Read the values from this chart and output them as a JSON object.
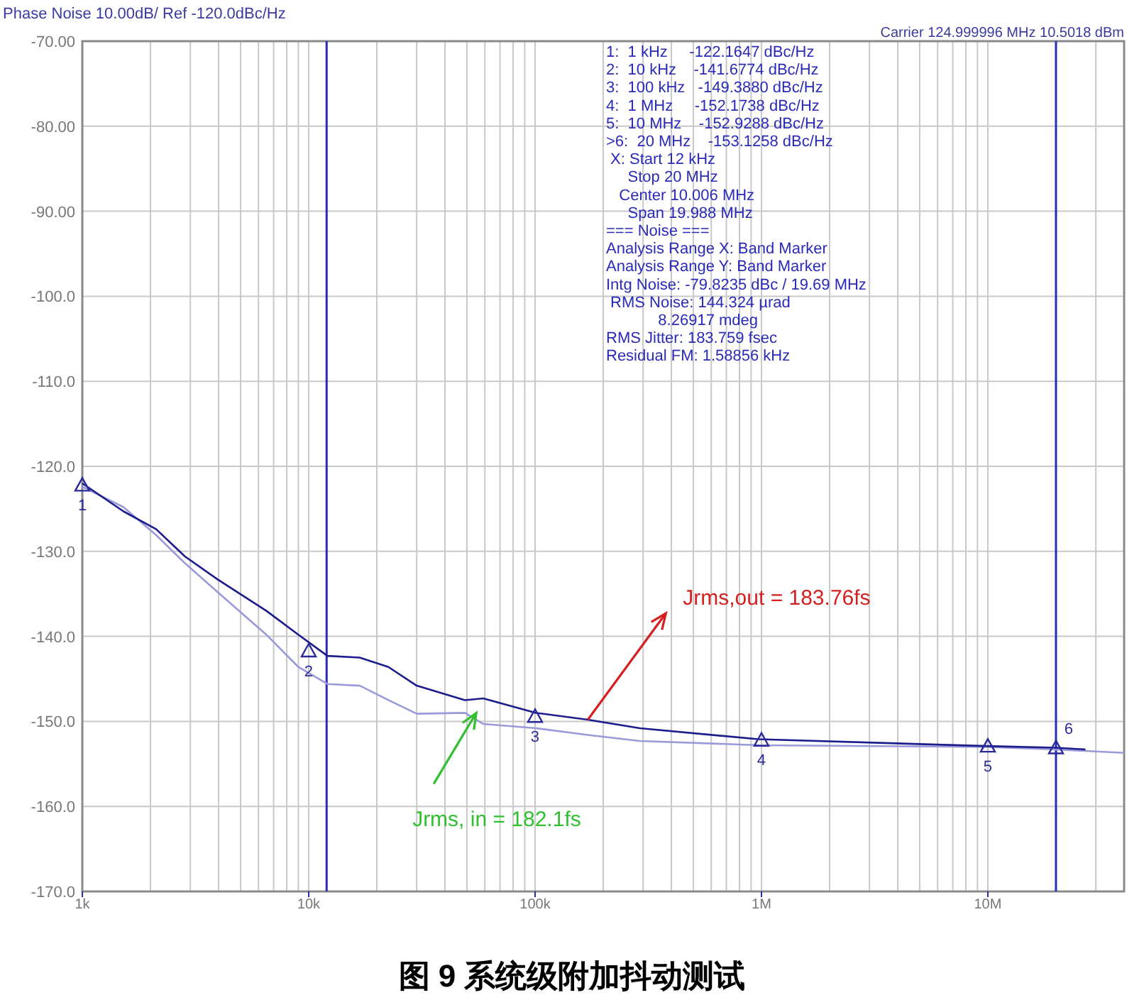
{
  "chart_data": {
    "type": "line",
    "title": "Phase Noise 10.00dB/ Ref -120.0dBc/Hz",
    "subtitle": "Carrier 124.999996 MHz   10.5018 dBm",
    "xlim": [
      1000,
      40000000
    ],
    "ylim": [
      -170,
      -70
    ],
    "log": "x",
    "grid": true,
    "xticks": [
      {
        "value": 1000,
        "label": "1k"
      },
      {
        "value": 10000,
        "label": "10k"
      },
      {
        "value": 100000,
        "label": "100k"
      },
      {
        "value": 1000000,
        "label": "1M"
      },
      {
        "value": 10000000,
        "label": "10M"
      }
    ],
    "yticks": [
      {
        "value": -70,
        "label": "-70.00"
      },
      {
        "value": -80,
        "label": "-80.00"
      },
      {
        "value": -90,
        "label": "-90.00"
      },
      {
        "value": -100,
        "label": "-100.0"
      },
      {
        "value": -110,
        "label": "-110.0"
      },
      {
        "value": -120,
        "label": "-120.0"
      },
      {
        "value": -130,
        "label": "-130.0"
      },
      {
        "value": -140,
        "label": "-140.0"
      },
      {
        "value": -150,
        "label": "-150.0"
      },
      {
        "value": -160,
        "label": "-160.0"
      },
      {
        "value": -170,
        "label": "-170.0"
      }
    ],
    "ref_lines": [
      {
        "axis": "x",
        "value": 12000,
        "color": "#2a2ab8"
      },
      {
        "axis": "x",
        "value": 20000000,
        "color": "#2a2ab8"
      }
    ],
    "series": [
      {
        "color": "#9a9ad8",
        "x": [
          1000,
          1520,
          2120,
          2840,
          3960,
          6500,
          9000,
          12100,
          16800,
          22500,
          30000,
          49000,
          59000,
          101000,
          171000,
          290000,
          970000,
          9800000,
          20000000,
          40000000
        ],
        "values": [
          -122.4,
          -124.8,
          -128.1,
          -131.4,
          -134.8,
          -139.8,
          -143.6,
          -145.6,
          -145.8,
          -147.5,
          -149.1,
          -149,
          -150.3,
          -150.8,
          -151.6,
          -152.3,
          -152.8,
          -153,
          -153.3,
          -153.7
        ]
      },
      {
        "color": "#1c1c8c",
        "x": [
          1000,
          1520,
          2120,
          2840,
          3960,
          6500,
          9000,
          12100,
          16800,
          22500,
          30000,
          49000,
          59000,
          101000,
          171000,
          290000,
          970000,
          9800000,
          20000000,
          27000000
        ],
        "values": [
          -122,
          -125.3,
          -127.4,
          -130.6,
          -133.3,
          -137,
          -139.8,
          -142.3,
          -142.5,
          -143.6,
          -145.8,
          -147.5,
          -147.3,
          -149,
          -149.8,
          -150.8,
          -152.1,
          -152.9,
          -153.1,
          -153.3
        ]
      },
      {
        "type": "scatter",
        "marker": "triangle",
        "color": "#2a2a9a",
        "x": [
          1000,
          10000,
          100000,
          1000000,
          10000000,
          20000000
        ],
        "values": [
          -122.2,
          -141.7,
          -149.4,
          -152.2,
          -152.9,
          -153.1
        ]
      }
    ],
    "annotations": [
      "1:  1 kHz     -122.1647 dBc/Hz",
      "2:  10 kHz    -141.6774 dBc/Hz",
      "3:  100 kHz   -149.3880 dBc/Hz",
      "4:  1 MHz     -152.1738 dBc/Hz",
      "5:  10 MHz    -152.9288 dBc/Hz",
      ">6:  20 MHz    -153.1258 dBc/Hz",
      " X: Start 12 kHz",
      "     Stop 20 MHz",
      "   Center 10.006 MHz",
      "     Span 19.988 MHz",
      "=== Noise ===",
      "Analysis Range X: Band Marker",
      "Analysis Range Y: Band Marker",
      "Intg Noise: -79.8235 dBc / 19.69 MHz",
      " RMS Noise: 144.324 µrad",
      "            8.26917 mdeg",
      "RMS Jitter: 183.759 fsec",
      "Residual FM: 1.58856 kHz",
      {
        "text": "1",
        "x": 1000,
        "y": -122.1647
      },
      {
        "text": "2",
        "x": 10000,
        "y": -141.6774
      },
      {
        "text": "3",
        "x": 100000,
        "y": -149.388
      },
      {
        "text": "4",
        "x": 1000000,
        "y": -152.1738
      },
      {
        "text": "5",
        "x": 10000000,
        "y": -152.9288
      },
      {
        "text": "6",
        "x": 20000000,
        "y": -153.1258
      },
      {
        "text": "Jrms,out = 183.76fs",
        "x": 171000,
        "y": -149.8
      },
      {
        "text": "Jrms, in = 182.1fs",
        "x": 55000,
        "y": -149
      },
      "图 9  系统级附加抖动测试"
    ]
  }
}
